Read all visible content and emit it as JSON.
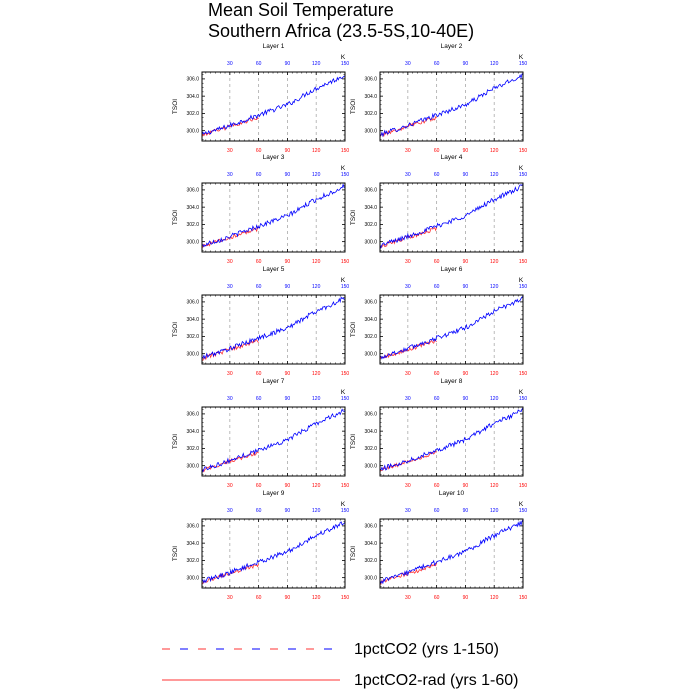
{
  "title": [
    "Mean Soil Temperature",
    "Southern Africa (23.5-5S,10-40E)"
  ],
  "colors": {
    "series_a": "#0000ff",
    "series_b": "#ff3333",
    "top_ticks": "#0000ff",
    "bottom_ticks": "#ff0000",
    "grid": "#aaaaaa"
  },
  "chart_data": {
    "type": "line",
    "ylabel": "TSOI",
    "units": "K",
    "ylim": [
      298.8,
      306.8
    ],
    "yticks": [
      "300.0",
      "302.0",
      "304.0",
      "306.0"
    ],
    "ytick_values": [
      300.0,
      302.0,
      304.0,
      306.0
    ],
    "x_top": {
      "range": [
        1,
        150
      ],
      "ticks": [
        30,
        60,
        90,
        120,
        150
      ],
      "labels": [
        "30",
        "60",
        "90",
        "120",
        "150"
      ]
    },
    "x_bottom": {
      "range": [
        1,
        150
      ],
      "ticks": [
        30,
        60,
        90,
        120,
        150
      ],
      "labels": [
        "30",
        "60",
        "90",
        "120",
        "150"
      ]
    },
    "grid_vertical": [
      30,
      60,
      90,
      120
    ],
    "panels": [
      {
        "title": "Layer 1"
      },
      {
        "title": "Layer 2"
      },
      {
        "title": "Layer 3"
      },
      {
        "title": "Layer 4"
      },
      {
        "title": "Layer 5"
      },
      {
        "title": "Layer 6"
      },
      {
        "title": "Layer 7"
      },
      {
        "title": "Layer 8"
      },
      {
        "title": "Layer 9"
      },
      {
        "title": "Layer 10"
      }
    ],
    "series": [
      {
        "name": "1pctCO2 (yrs 1-150)",
        "x_range": [
          1,
          150
        ],
        "x_step": 1,
        "approx_values_every_10yrs": {
          "x": [
            1,
            10,
            20,
            30,
            40,
            50,
            60,
            70,
            80,
            90,
            100,
            110,
            120,
            130,
            140,
            150
          ],
          "y": [
            299.5,
            299.9,
            300.2,
            300.6,
            301.0,
            301.4,
            301.8,
            302.2,
            302.6,
            303.0,
            303.6,
            304.3,
            304.9,
            305.4,
            305.9,
            306.5
          ]
        }
      },
      {
        "name": "1pctCO2-rad (yrs 1-60)",
        "x_range": [
          1,
          60
        ],
        "x_step": 1,
        "approx_values_every_10yrs": {
          "x": [
            1,
            10,
            20,
            30,
            40,
            50,
            60
          ],
          "y": [
            299.4,
            299.8,
            300.1,
            300.5,
            300.8,
            301.2,
            301.5
          ]
        }
      }
    ],
    "legend": [
      "1pctCO2 (yrs 1-150)",
      "1pctCO2-rad (yrs 1-60)"
    ],
    "legend_placement": "bottom"
  }
}
